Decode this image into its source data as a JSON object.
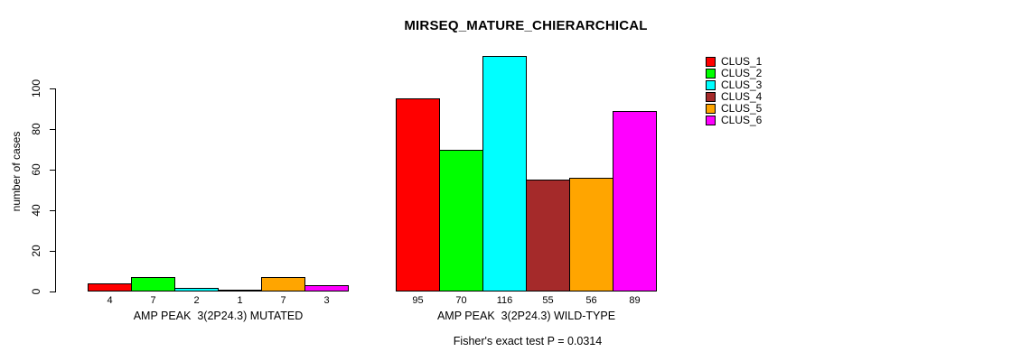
{
  "chart_data": {
    "type": "bar",
    "title": "MIRSEQ_MATURE_CHIERARCHICAL",
    "ylabel": "number of cases",
    "annotation": "Fisher's exact test P = 0.0314",
    "ylim": [
      0,
      116
    ],
    "yticks": [
      0,
      20,
      40,
      60,
      80,
      100
    ],
    "grid": false,
    "legend_position": "right",
    "bar_value_labels": true,
    "categories": [
      "AMP PEAK  3(2P24.3) MUTATED",
      "AMP PEAK  3(2P24.3) WILD-TYPE"
    ],
    "series": [
      {
        "name": "CLUS_1",
        "color": "#ff0000",
        "values": [
          4,
          95
        ]
      },
      {
        "name": "CLUS_2",
        "color": "#00ff00",
        "values": [
          7,
          70
        ]
      },
      {
        "name": "CLUS_3",
        "color": "#00ffff",
        "values": [
          2,
          116
        ]
      },
      {
        "name": "CLUS_4",
        "color": "#a52a2a",
        "values": [
          1,
          55
        ]
      },
      {
        "name": "CLUS_5",
        "color": "#ffa500",
        "values": [
          7,
          56
        ]
      },
      {
        "name": "CLUS_6",
        "color": "#ff00ff",
        "values": [
          3,
          89
        ]
      }
    ]
  }
}
